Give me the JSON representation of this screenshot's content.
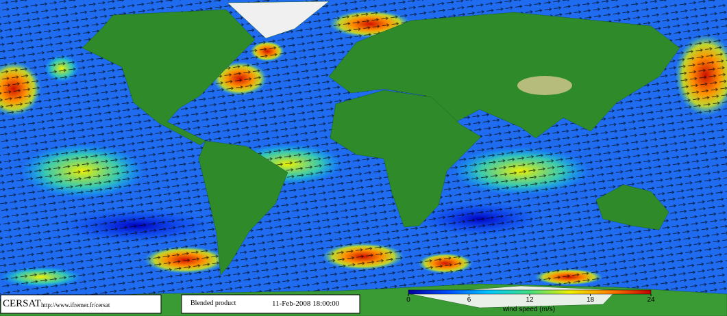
{
  "footer": {
    "logo": "CERSAT",
    "url": "http://www.ifremer.fr/cersat",
    "product": "Blended product",
    "date": "11-Feb-2008 18:00:00"
  },
  "colorbar": {
    "label": "wind speed (m/s)",
    "range": [
      0,
      24
    ],
    "ticks": [
      0,
      6,
      12,
      18,
      24
    ],
    "colors": [
      "#0000a0",
      "#0050ff",
      "#00c8ff",
      "#40e080",
      "#f0f000",
      "#ff8000",
      "#c00000"
    ]
  }
}
